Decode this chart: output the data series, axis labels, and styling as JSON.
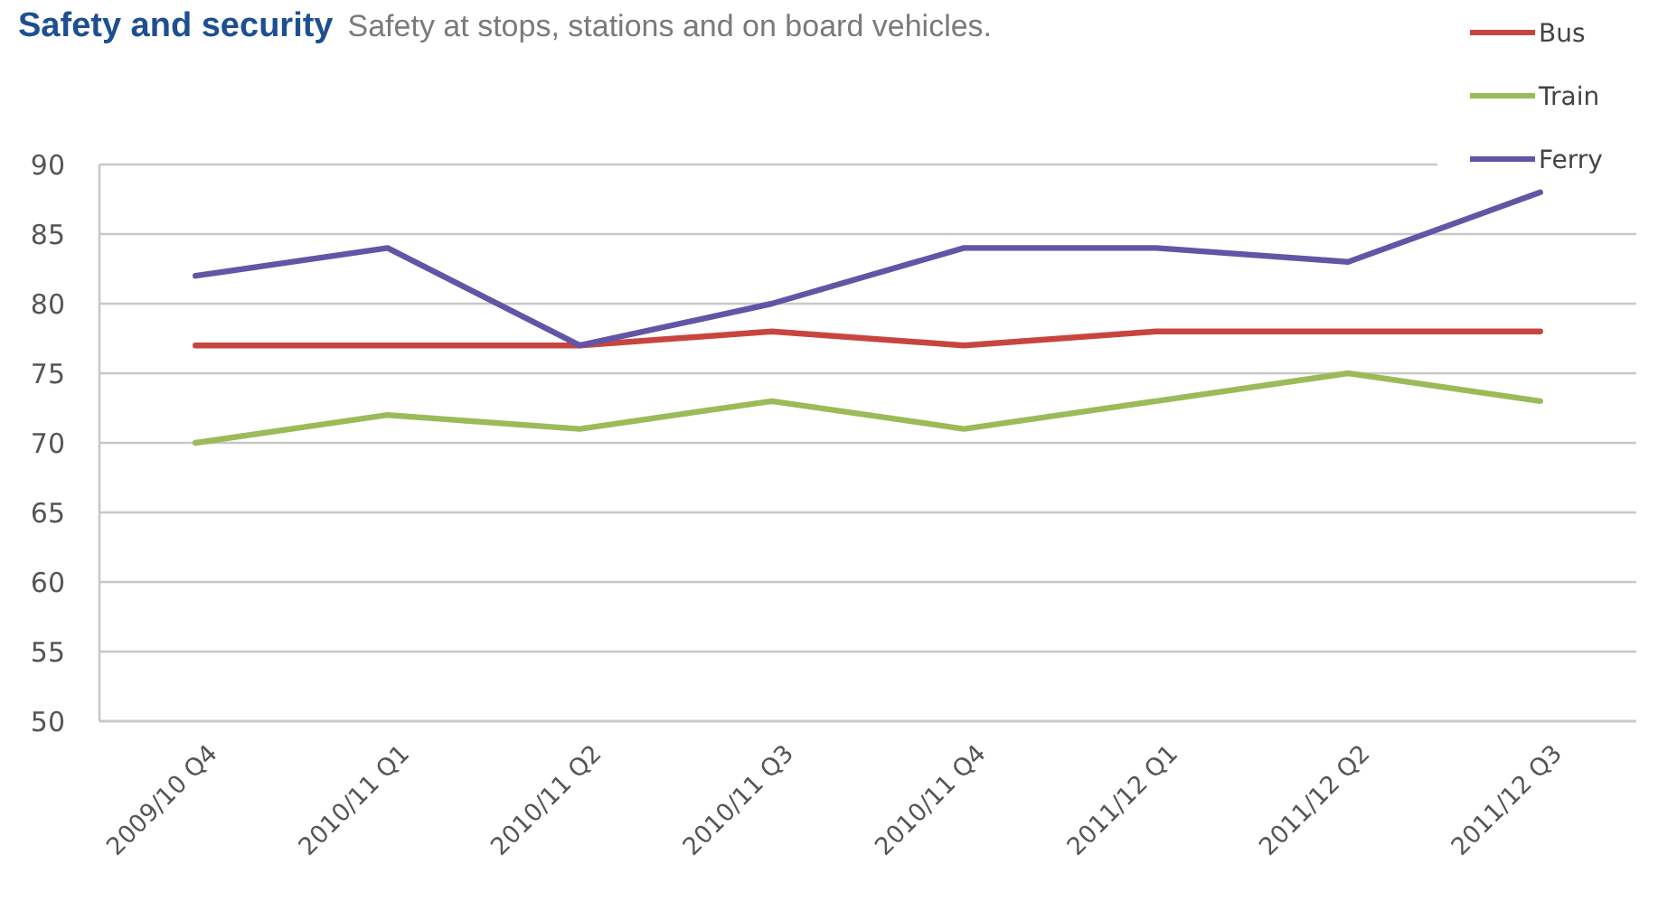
{
  "chart_data": {
    "type": "line",
    "title": "Safety and security",
    "subtitle": "Safety at stops, stations and on board vehicles.",
    "categories": [
      "2009/10 Q4",
      "2010/11 Q1",
      "2010/11 Q2",
      "2010/11 Q3",
      "2010/11 Q4",
      "2011/12 Q1",
      "2011/12 Q2",
      "2011/12 Q3"
    ],
    "series": [
      {
        "name": "Bus",
        "color": "#c8453f",
        "values": [
          77,
          77,
          77,
          78,
          77,
          78,
          78,
          78
        ]
      },
      {
        "name": "Train",
        "color": "#9bbb59",
        "values": [
          70,
          72,
          71,
          73,
          71,
          73,
          75,
          73
        ]
      },
      {
        "name": "Ferry",
        "color": "#6355a6",
        "values": [
          82,
          84,
          77,
          80,
          84,
          84,
          83,
          88
        ]
      }
    ],
    "ylim": [
      50,
      90
    ],
    "yticks": [
      50,
      55,
      60,
      65,
      70,
      75,
      80,
      85,
      90
    ],
    "grid": "y",
    "legend": "top right",
    "marker": "none",
    "line_style": "solid"
  }
}
